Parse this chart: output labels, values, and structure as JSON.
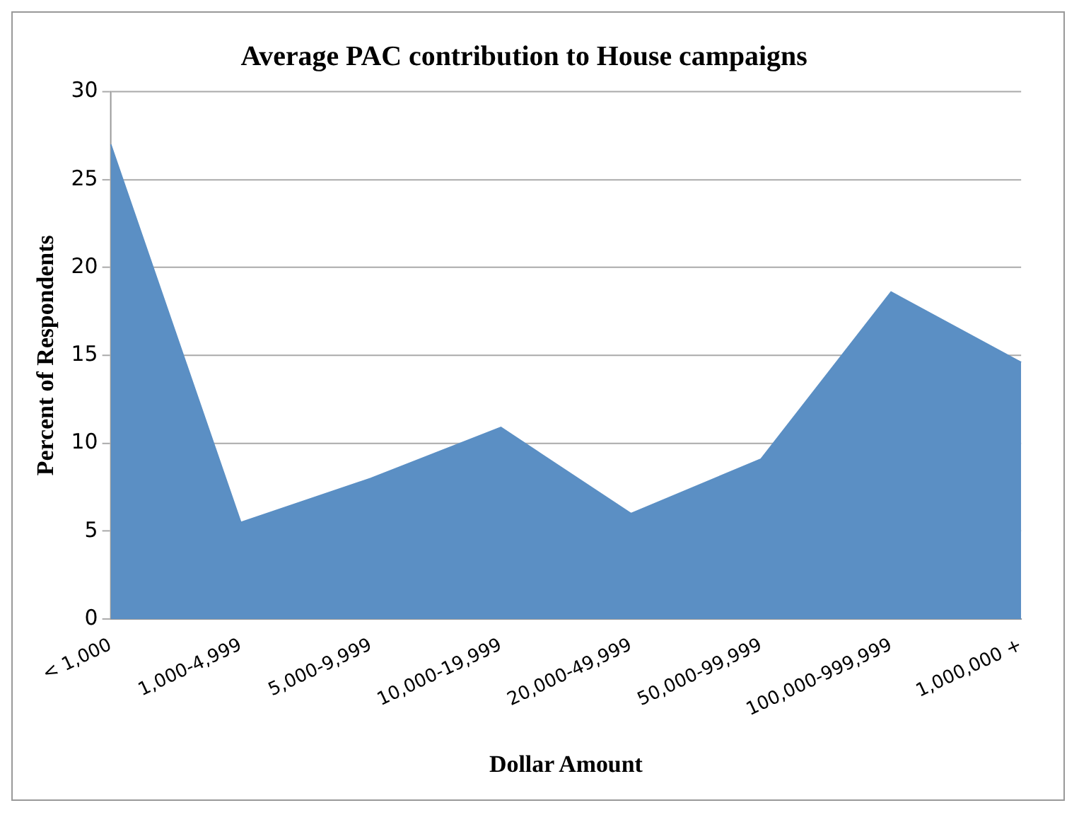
{
  "chart_data": {
    "type": "area",
    "title": "Average PAC contribution to House campaigns",
    "xlabel": "Dollar Amount",
    "ylabel": "Percent of Respondents",
    "categories": [
      "< 1,000",
      "1,000-4,999",
      "5,000-9,999",
      "10,000-19,999",
      "20,000-49,999",
      "50,000-99,999",
      "100,000-999,999",
      "1,000,000 +"
    ],
    "series": [
      {
        "color": "#5b8fc4",
        "values": [
          27.0,
          5.5,
          8.0,
          10.9,
          6.0,
          9.1,
          18.6,
          14.6
        ]
      }
    ],
    "ylim": [
      0,
      30
    ],
    "yticks": [
      0,
      5,
      10,
      15,
      20,
      25,
      30
    ],
    "grid": "y",
    "legend": false
  }
}
